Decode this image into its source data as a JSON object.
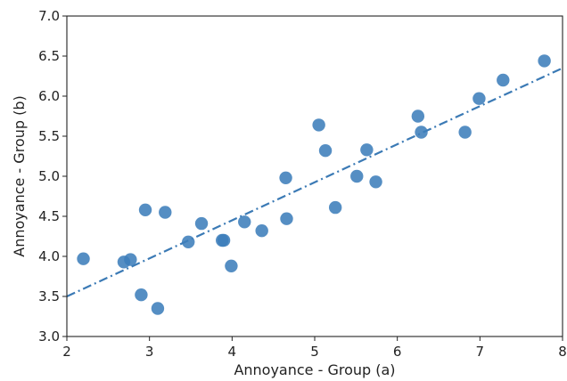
{
  "chart_data": {
    "type": "scatter",
    "title": "",
    "xlabel": "Annoyance - Group (a)",
    "ylabel": "Annoyance - Group (b)",
    "xlim": [
      2,
      8
    ],
    "ylim": [
      3.0,
      7.0
    ],
    "xticks": [
      "2",
      "3",
      "4",
      "5",
      "6",
      "7",
      "8"
    ],
    "yticks": [
      "3.0",
      "3.5",
      "4.0",
      "4.5",
      "5.0",
      "5.5",
      "6.0",
      "6.5",
      "7.0"
    ],
    "grid": false,
    "point_color": "#3d7ebb",
    "trendline_color": "#3b7ab5",
    "trendline": {
      "style": "dash-dot",
      "x": [
        2,
        8
      ],
      "y": [
        3.5,
        6.35
      ]
    },
    "points": [
      {
        "x": 2.2,
        "y": 3.97
      },
      {
        "x": 2.69,
        "y": 3.93
      },
      {
        "x": 2.77,
        "y": 3.96
      },
      {
        "x": 2.9,
        "y": 3.52
      },
      {
        "x": 2.95,
        "y": 4.58
      },
      {
        "x": 3.1,
        "y": 3.35
      },
      {
        "x": 3.19,
        "y": 4.55
      },
      {
        "x": 3.47,
        "y": 4.18
      },
      {
        "x": 3.63,
        "y": 4.41
      },
      {
        "x": 3.88,
        "y": 4.2
      },
      {
        "x": 3.9,
        "y": 4.2
      },
      {
        "x": 3.99,
        "y": 3.88
      },
      {
        "x": 4.15,
        "y": 4.43
      },
      {
        "x": 4.36,
        "y": 4.32
      },
      {
        "x": 4.65,
        "y": 4.98
      },
      {
        "x": 4.66,
        "y": 4.47
      },
      {
        "x": 5.05,
        "y": 5.64
      },
      {
        "x": 5.13,
        "y": 5.32
      },
      {
        "x": 5.25,
        "y": 4.61
      },
      {
        "x": 5.51,
        "y": 5.0
      },
      {
        "x": 5.63,
        "y": 5.33
      },
      {
        "x": 5.74,
        "y": 4.93
      },
      {
        "x": 6.25,
        "y": 5.75
      },
      {
        "x": 6.29,
        "y": 5.55
      },
      {
        "x": 6.82,
        "y": 5.55
      },
      {
        "x": 6.99,
        "y": 5.97
      },
      {
        "x": 7.28,
        "y": 6.2
      },
      {
        "x": 7.78,
        "y": 6.44
      }
    ]
  }
}
